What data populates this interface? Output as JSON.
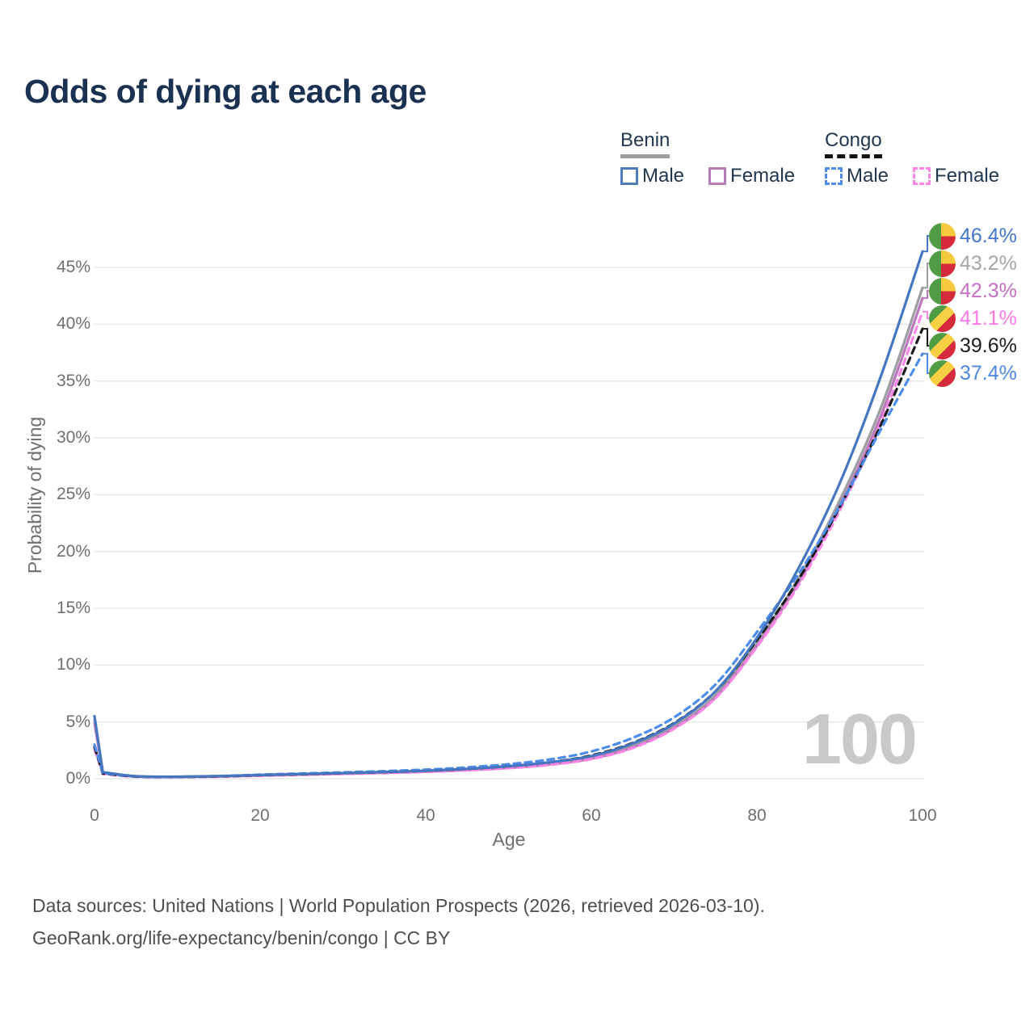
{
  "page": {
    "title": "Odds of dying at each age",
    "watermark": "100"
  },
  "legend": {
    "groups": [
      {
        "title": "Benin",
        "underline": "solid",
        "underline_color": "#9d9da2",
        "items": [
          {
            "label": "Male",
            "color": "#4f7cba",
            "dashed": false
          },
          {
            "label": "Female",
            "color": "#b77cb4",
            "dashed": false
          }
        ]
      },
      {
        "title": "Congo",
        "underline": "dashed",
        "underline_color": "#141414",
        "items": [
          {
            "label": "Male",
            "color": "#4e8ceb",
            "dashed": true
          },
          {
            "label": "Female",
            "color": "#fc86e7",
            "dashed": true
          }
        ]
      }
    ]
  },
  "chart_data": {
    "type": "line",
    "title": "Odds of dying at each age",
    "xlabel": "Age",
    "ylabel": "Probability of dying",
    "xlim": [
      0,
      100
    ],
    "ylim": [
      0,
      45
    ],
    "grid": "horizontal",
    "legend_position": "top-right",
    "xticks": [
      "0",
      "20",
      "40",
      "60",
      "80",
      "100"
    ],
    "yticks": [
      "0%",
      "5%",
      "10%",
      "15%",
      "20%",
      "25%",
      "30%",
      "35%",
      "40%",
      "45%"
    ],
    "ages": [
      0,
      1,
      5,
      10,
      15,
      20,
      25,
      30,
      35,
      40,
      45,
      50,
      55,
      60,
      65,
      70,
      75,
      80,
      85,
      90,
      95,
      100
    ],
    "series": [
      {
        "name": "Benin Male",
        "country": "Benin",
        "sex": "Male",
        "flag": "benin",
        "color": "#4576c0",
        "dashed": false,
        "end_label": "46.4%",
        "end_value": 46.4,
        "label_color": "#4277c9",
        "values": [
          5.5,
          0.58,
          0.22,
          0.18,
          0.23,
          0.33,
          0.42,
          0.5,
          0.6,
          0.7,
          0.87,
          1.1,
          1.45,
          2.0,
          3.1,
          4.85,
          7.7,
          12.4,
          18.5,
          26.0,
          35.5,
          46.4
        ]
      },
      {
        "name": "Benin",
        "country": "Benin",
        "sex": "Both",
        "flag": "benin",
        "color": "#9d9da2",
        "dashed": false,
        "end_label": "43.2%",
        "end_value": 43.2,
        "label_color": "#a5a5a5",
        "values": [
          5.2,
          0.55,
          0.21,
          0.17,
          0.21,
          0.3,
          0.38,
          0.46,
          0.55,
          0.65,
          0.8,
          1.0,
          1.32,
          1.85,
          2.9,
          4.6,
          7.35,
          12.0,
          17.6,
          24.5,
          32.7,
          43.2
        ]
      },
      {
        "name": "Benin Female",
        "country": "Benin",
        "sex": "Female",
        "flag": "benin",
        "color": "#bb79bb",
        "dashed": false,
        "end_label": "42.3%",
        "end_value": 42.3,
        "label_color": "#c46ec4",
        "values": [
          4.9,
          0.52,
          0.2,
          0.16,
          0.2,
          0.28,
          0.36,
          0.44,
          0.52,
          0.62,
          0.76,
          0.95,
          1.25,
          1.76,
          2.75,
          4.45,
          7.15,
          11.7,
          17.2,
          24.0,
          32.0,
          42.3
        ]
      },
      {
        "name": "Congo Female",
        "country": "Congo",
        "sex": "Female",
        "flag": "congo",
        "color": "#fc86e7",
        "dashed": true,
        "end_label": "41.1%",
        "end_value": 41.1,
        "label_color": "#ff78e8",
        "values": [
          2.6,
          0.43,
          0.17,
          0.14,
          0.18,
          0.26,
          0.34,
          0.42,
          0.5,
          0.6,
          0.74,
          0.93,
          1.22,
          1.73,
          2.7,
          4.4,
          7.1,
          11.6,
          17.0,
          23.6,
          31.4,
          41.1
        ]
      },
      {
        "name": "Congo",
        "country": "Congo",
        "sex": "Both",
        "flag": "congo",
        "color": "#1b1b1b",
        "dashed": true,
        "end_label": "39.6%",
        "end_value": 39.6,
        "label_color": "#1d1d1d",
        "values": [
          2.8,
          0.46,
          0.19,
          0.16,
          0.21,
          0.31,
          0.4,
          0.49,
          0.58,
          0.7,
          0.87,
          1.1,
          1.45,
          2.05,
          3.15,
          4.9,
          7.7,
          12.2,
          17.5,
          23.9,
          31.2,
          39.6
        ]
      },
      {
        "name": "Congo Male",
        "country": "Congo",
        "sex": "Male",
        "flag": "congo",
        "color": "#4e8ceb",
        "dashed": true,
        "end_label": "37.4%",
        "end_value": 37.4,
        "label_color": "#4d87e0",
        "values": [
          3.0,
          0.5,
          0.2,
          0.17,
          0.24,
          0.36,
          0.46,
          0.56,
          0.67,
          0.8,
          1.0,
          1.28,
          1.7,
          2.4,
          3.6,
          5.4,
          8.3,
          12.9,
          18.0,
          24.0,
          30.8,
          37.4
        ]
      }
    ]
  },
  "footer": {
    "line1": "Data sources: United Nations | World Population Prospects (2026, retrieved 2026-03-10).",
    "line2": "GeoRank.org/life-expectancy/benin/congo | CC BY"
  }
}
